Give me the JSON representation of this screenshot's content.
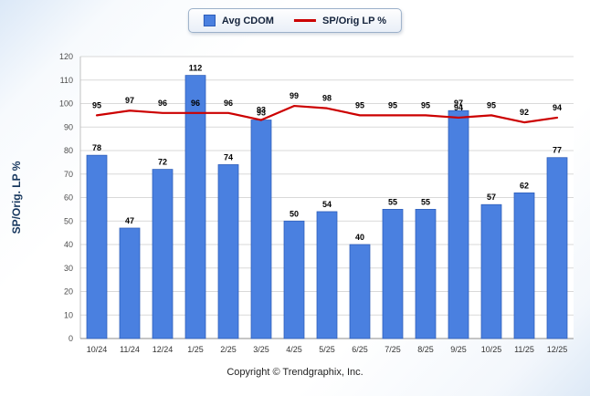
{
  "chart_data": {
    "type": "bar",
    "categories": [
      "10/24",
      "11/24",
      "12/24",
      "1/25",
      "2/25",
      "3/25",
      "4/25",
      "5/25",
      "6/25",
      "7/25",
      "8/25",
      "9/25",
      "10/25",
      "11/25",
      "12/25"
    ],
    "series": [
      {
        "name": "Avg CDOM",
        "kind": "bar",
        "values": [
          78,
          47,
          72,
          112,
          74,
          93,
          50,
          54,
          40,
          55,
          55,
          97,
          57,
          62,
          77
        ]
      },
      {
        "name": "SP/Orig LP %",
        "kind": "line",
        "values": [
          95,
          97,
          96,
          96,
          96,
          93,
          99,
          98,
          95,
          95,
          95,
          94,
          95,
          92,
          94
        ]
      }
    ],
    "title": "",
    "xlabel": "",
    "ylabel": "SP/Orig. LP %",
    "ylim": [
      0,
      120
    ],
    "ytick_step": 10,
    "grid": true,
    "legend_position": "top-center"
  },
  "legend": {
    "bar_label": "Avg CDOM",
    "line_label": "SP/Orig LP %"
  },
  "footer": {
    "copyright": "Copyright © Trendgraphix, Inc."
  },
  "colors": {
    "bar_fill": "#4a80e0",
    "bar_stroke": "#2c5cb8",
    "line": "#cc0000",
    "grid": "#d9d9d9",
    "axis": "#8c8c8c",
    "tick_text": "#4d4d4d",
    "label_text": "#000000",
    "ylabel_text": "#17375e"
  }
}
